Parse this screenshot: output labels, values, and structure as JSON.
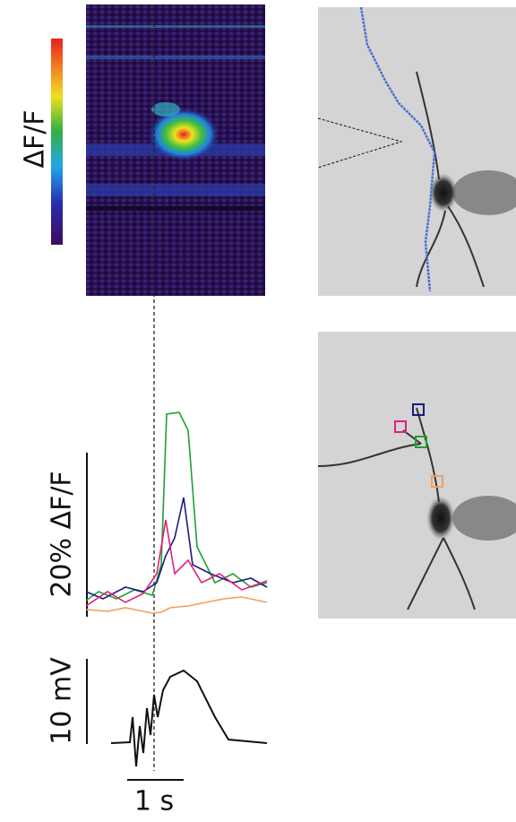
{
  "colorbar_label": "ΔF/F",
  "trace_scale_label": "20% ΔF/F",
  "voltage_scale_label": "10 mV",
  "time_scale_label": "1 s"
}
